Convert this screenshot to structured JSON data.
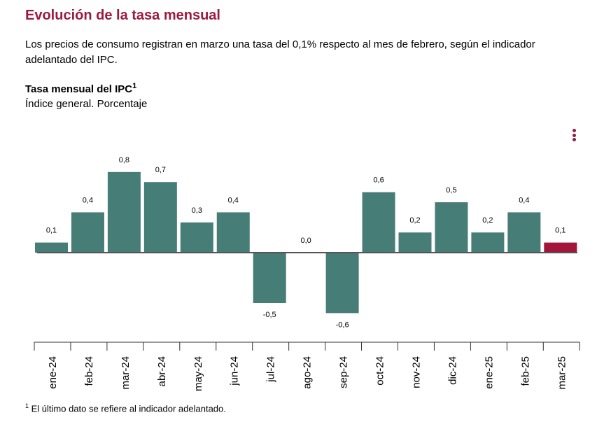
{
  "header": {
    "title": "Evolución de la tasa mensual",
    "description": "Los precios de consumo registran en marzo una tasa del 0,1% respecto al mes de febrero, según el indicador adelantado del IPC."
  },
  "chart_data": {
    "type": "bar",
    "title": "Tasa mensual del IPC",
    "title_superscript": "1",
    "subtitle": "Índice general. Porcentaje",
    "categories": [
      "ene-24",
      "feb-24",
      "mar-24",
      "abr-24",
      "may-24",
      "jun-24",
      "jul-24",
      "ago-24",
      "sep-24",
      "oct-24",
      "nov-24",
      "dic-24",
      "ene-25",
      "feb-25",
      "mar-25"
    ],
    "values": [
      0.1,
      0.4,
      0.8,
      0.7,
      0.3,
      0.4,
      -0.5,
      0.0,
      -0.6,
      0.6,
      0.2,
      0.5,
      0.2,
      0.4,
      0.1
    ],
    "data_labels": [
      "0,1",
      "0,4",
      "0,8",
      "0,7",
      "0,3",
      "0,4",
      "-0,5",
      "0,0",
      "-0,6",
      "0,6",
      "0,2",
      "0,5",
      "0,2",
      "0,4",
      "0,1"
    ],
    "colors": {
      "default": "#467d76",
      "highlight": "#a3163a"
    },
    "highlight_index": 14,
    "grid": false
  },
  "menu_icon": "kebab-menu-icon",
  "footnote": {
    "mark": "1",
    "text": "El último dato se refiere al indicador adelantado."
  }
}
